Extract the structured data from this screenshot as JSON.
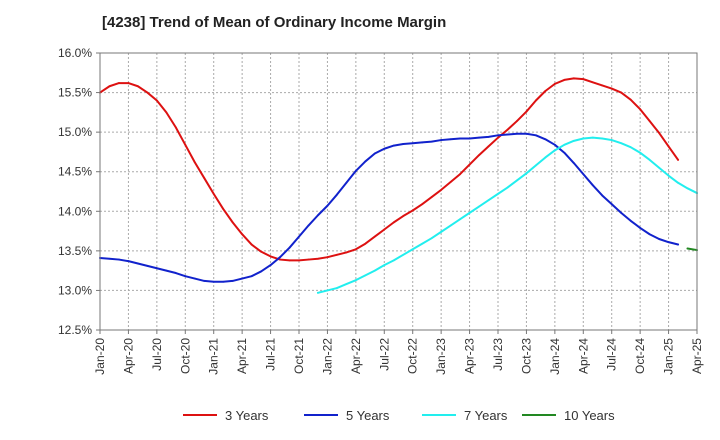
{
  "chart_data": {
    "type": "line",
    "title": "[4238]  Trend of Mean of Ordinary Income Margin",
    "xlabel": "",
    "ylabel": "",
    "x_tick_labels": [
      "Jan-20",
      "Apr-20",
      "Jul-20",
      "Oct-20",
      "Jan-21",
      "Apr-21",
      "Jul-21",
      "Oct-21",
      "Jan-22",
      "Apr-22",
      "Jul-22",
      "Oct-22",
      "Jan-23",
      "Apr-23",
      "Jul-23",
      "Oct-23",
      "Jan-24",
      "Apr-24",
      "Jul-24",
      "Oct-24",
      "Jan-25",
      "Apr-25"
    ],
    "y_tick_labels": [
      "12.5%",
      "13.0%",
      "13.5%",
      "14.0%",
      "14.5%",
      "15.0%",
      "15.5%",
      "16.0%"
    ],
    "ylim": [
      12.5,
      16.0
    ],
    "y_ticks": [
      12.5,
      13.0,
      13.5,
      14.0,
      14.5,
      15.0,
      15.5,
      16.0
    ],
    "grid": true,
    "legend_position": "bottom",
    "series": [
      {
        "name": "3 Years",
        "color": "#dd1111",
        "points": [
          [
            "Jan-20",
            15.5
          ],
          [
            "Feb-20",
            15.58
          ],
          [
            "Mar-20",
            15.62
          ],
          [
            "Apr-20",
            15.62
          ],
          [
            "May-20",
            15.58
          ],
          [
            "Jun-20",
            15.5
          ],
          [
            "Jul-20",
            15.4
          ],
          [
            "Aug-20",
            15.25
          ],
          [
            "Sep-20",
            15.06
          ],
          [
            "Oct-20",
            14.84
          ],
          [
            "Nov-20",
            14.62
          ],
          [
            "Dec-20",
            14.42
          ],
          [
            "Jan-21",
            14.22
          ],
          [
            "Feb-21",
            14.03
          ],
          [
            "Mar-21",
            13.86
          ],
          [
            "Apr-21",
            13.71
          ],
          [
            "May-21",
            13.58
          ],
          [
            "Jun-21",
            13.49
          ],
          [
            "Jul-21",
            13.43
          ],
          [
            "Aug-21",
            13.39
          ],
          [
            "Sep-21",
            13.38
          ],
          [
            "Oct-21",
            13.38
          ],
          [
            "Nov-21",
            13.39
          ],
          [
            "Dec-21",
            13.4
          ],
          [
            "Jan-22",
            13.42
          ],
          [
            "Feb-22",
            13.45
          ],
          [
            "Mar-22",
            13.48
          ],
          [
            "Apr-22",
            13.52
          ],
          [
            "May-22",
            13.59
          ],
          [
            "Jun-22",
            13.68
          ],
          [
            "Jul-22",
            13.77
          ],
          [
            "Aug-22",
            13.86
          ],
          [
            "Sep-22",
            13.94
          ],
          [
            "Oct-22",
            14.01
          ],
          [
            "Nov-22",
            14.09
          ],
          [
            "Dec-22",
            14.18
          ],
          [
            "Jan-23",
            14.27
          ],
          [
            "Feb-23",
            14.37
          ],
          [
            "Mar-23",
            14.47
          ],
          [
            "Apr-23",
            14.59
          ],
          [
            "May-23",
            14.71
          ],
          [
            "Jun-23",
            14.82
          ],
          [
            "Jul-23",
            14.93
          ],
          [
            "Aug-23",
            15.03
          ],
          [
            "Sep-23",
            15.14
          ],
          [
            "Oct-23",
            15.26
          ],
          [
            "Nov-23",
            15.4
          ],
          [
            "Dec-23",
            15.52
          ],
          [
            "Jan-24",
            15.61
          ],
          [
            "Feb-24",
            15.66
          ],
          [
            "Mar-24",
            15.68
          ],
          [
            "Apr-24",
            15.67
          ],
          [
            "May-24",
            15.63
          ],
          [
            "Jun-24",
            15.59
          ],
          [
            "Jul-24",
            15.55
          ],
          [
            "Aug-24",
            15.5
          ],
          [
            "Sep-24",
            15.41
          ],
          [
            "Oct-24",
            15.29
          ],
          [
            "Nov-24",
            15.14
          ],
          [
            "Dec-24",
            14.99
          ],
          [
            "Jan-25",
            14.82
          ],
          [
            "Feb-25",
            14.65
          ]
        ]
      },
      {
        "name": "5 Years",
        "color": "#1122cc",
        "points": [
          [
            "Jan-20",
            13.41
          ],
          [
            "Feb-20",
            13.4
          ],
          [
            "Mar-20",
            13.39
          ],
          [
            "Apr-20",
            13.37
          ],
          [
            "May-20",
            13.34
          ],
          [
            "Jun-20",
            13.31
          ],
          [
            "Jul-20",
            13.28
          ],
          [
            "Aug-20",
            13.25
          ],
          [
            "Sep-20",
            13.22
          ],
          [
            "Oct-20",
            13.18
          ],
          [
            "Nov-20",
            13.15
          ],
          [
            "Dec-20",
            13.12
          ],
          [
            "Jan-21",
            13.11
          ],
          [
            "Feb-21",
            13.11
          ],
          [
            "Mar-21",
            13.12
          ],
          [
            "Apr-21",
            13.15
          ],
          [
            "May-21",
            13.18
          ],
          [
            "Jun-21",
            13.24
          ],
          [
            "Jul-21",
            13.32
          ],
          [
            "Aug-21",
            13.42
          ],
          [
            "Sep-21",
            13.54
          ],
          [
            "Oct-21",
            13.68
          ],
          [
            "Nov-21",
            13.82
          ],
          [
            "Dec-21",
            13.95
          ],
          [
            "Jan-22",
            14.07
          ],
          [
            "Feb-22",
            14.21
          ],
          [
            "Mar-22",
            14.36
          ],
          [
            "Apr-22",
            14.51
          ],
          [
            "May-22",
            14.63
          ],
          [
            "Jun-22",
            14.73
          ],
          [
            "Jul-22",
            14.79
          ],
          [
            "Aug-22",
            14.83
          ],
          [
            "Sep-22",
            14.85
          ],
          [
            "Oct-22",
            14.86
          ],
          [
            "Nov-22",
            14.87
          ],
          [
            "Dec-22",
            14.88
          ],
          [
            "Jan-23",
            14.9
          ],
          [
            "Feb-23",
            14.91
          ],
          [
            "Mar-23",
            14.92
          ],
          [
            "Apr-23",
            14.92
          ],
          [
            "May-23",
            14.93
          ],
          [
            "Jun-23",
            14.94
          ],
          [
            "Jul-23",
            14.96
          ],
          [
            "Aug-23",
            14.97
          ],
          [
            "Sep-23",
            14.98
          ],
          [
            "Oct-23",
            14.98
          ],
          [
            "Nov-23",
            14.96
          ],
          [
            "Dec-23",
            14.91
          ],
          [
            "Jan-24",
            14.84
          ],
          [
            "Feb-24",
            14.74
          ],
          [
            "Mar-24",
            14.61
          ],
          [
            "Apr-24",
            14.47
          ],
          [
            "May-24",
            14.33
          ],
          [
            "Jun-24",
            14.2
          ],
          [
            "Jul-24",
            14.09
          ],
          [
            "Aug-24",
            13.98
          ],
          [
            "Sep-24",
            13.88
          ],
          [
            "Oct-24",
            13.79
          ],
          [
            "Nov-24",
            13.71
          ],
          [
            "Dec-24",
            13.65
          ],
          [
            "Jan-25",
            13.61
          ],
          [
            "Feb-25",
            13.58
          ]
        ]
      },
      {
        "name": "7 Years",
        "color": "#22eeee",
        "points": [
          [
            "Dec-21",
            12.97
          ],
          [
            "Jan-22",
            13.0
          ],
          [
            "Feb-22",
            13.03
          ],
          [
            "Mar-22",
            13.08
          ],
          [
            "Apr-22",
            13.13
          ],
          [
            "May-22",
            13.19
          ],
          [
            "Jun-22",
            13.25
          ],
          [
            "Jul-22",
            13.32
          ],
          [
            "Aug-22",
            13.38
          ],
          [
            "Sep-22",
            13.45
          ],
          [
            "Oct-22",
            13.52
          ],
          [
            "Nov-22",
            13.59
          ],
          [
            "Dec-22",
            13.66
          ],
          [
            "Jan-23",
            13.74
          ],
          [
            "Feb-23",
            13.82
          ],
          [
            "Mar-23",
            13.9
          ],
          [
            "Apr-23",
            13.98
          ],
          [
            "May-23",
            14.06
          ],
          [
            "Jun-23",
            14.14
          ],
          [
            "Jul-23",
            14.22
          ],
          [
            "Aug-23",
            14.3
          ],
          [
            "Sep-23",
            14.39
          ],
          [
            "Oct-23",
            14.48
          ],
          [
            "Nov-23",
            14.58
          ],
          [
            "Dec-23",
            14.68
          ],
          [
            "Jan-24",
            14.77
          ],
          [
            "Feb-24",
            14.84
          ],
          [
            "Mar-24",
            14.89
          ],
          [
            "Apr-24",
            14.92
          ],
          [
            "May-24",
            14.93
          ],
          [
            "Jun-24",
            14.92
          ],
          [
            "Jul-24",
            14.9
          ],
          [
            "Aug-24",
            14.86
          ],
          [
            "Sep-24",
            14.81
          ],
          [
            "Oct-24",
            14.74
          ],
          [
            "Nov-24",
            14.65
          ],
          [
            "Dec-24",
            14.55
          ],
          [
            "Jan-25",
            14.45
          ],
          [
            "Feb-25",
            14.36
          ],
          [
            "Mar-25",
            14.29
          ],
          [
            "Apr-25",
            14.23
          ]
        ]
      },
      {
        "name": "10 Years",
        "color": "#228822",
        "points": [
          [
            "Mar-25",
            13.53
          ],
          [
            "Apr-25",
            13.51
          ]
        ]
      }
    ]
  }
}
